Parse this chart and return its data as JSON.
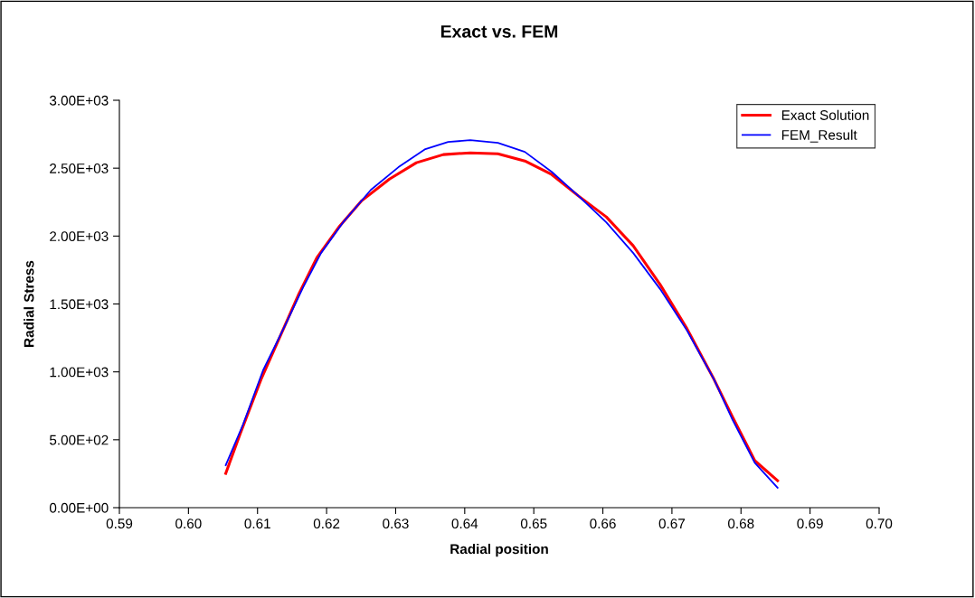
{
  "chart_data": {
    "type": "line",
    "title": "Exact vs. FEM",
    "xlabel": "Radial position",
    "ylabel": "Radial Stress",
    "xlim": [
      0.59,
      0.7
    ],
    "xticks": [
      0.59,
      {
        "value": 0.6,
        "label": "0.60"
      },
      0.61,
      0.62,
      0.63,
      0.64,
      0.65,
      0.66,
      0.67,
      0.68,
      0.69,
      {
        "value": 0.7,
        "label": "0.70"
      }
    ],
    "ylim": [
      0,
      3000
    ],
    "yticks": [
      {
        "value": 0,
        "label": "0.00E+00"
      },
      {
        "value": 500,
        "label": "5.00E+02"
      },
      {
        "value": 1000,
        "label": "1.00E+03"
      },
      {
        "value": 1500,
        "label": "1.50E+03"
      },
      {
        "value": 2000,
        "label": "2.00E+03"
      },
      {
        "value": 2500,
        "label": "2.50E+03"
      },
      {
        "value": 3000,
        "label": "3.00E+03"
      }
    ],
    "grid": false,
    "legend": "top right",
    "marker": "none",
    "line_style": "solid",
    "series": [
      {
        "name": "Exact Solution",
        "color": "#ff0000",
        "x": [
          0.6054,
          0.6075,
          0.6105,
          0.6134,
          0.616,
          0.6186,
          0.6219,
          0.6251,
          0.6291,
          0.633,
          0.6369,
          0.6408,
          0.6448,
          0.6487,
          0.6526,
          0.6565,
          0.6605,
          0.6644,
          0.6683,
          0.6722,
          0.6761,
          0.6788,
          0.682,
          0.6853
        ],
        "values": [
          253,
          545,
          944,
          1277,
          1576,
          1842,
          2074,
          2261,
          2420,
          2540,
          2600,
          2613,
          2606,
          2553,
          2453,
          2294,
          2141,
          1928,
          1642,
          1316,
          944,
          665,
          346,
          199
        ]
      },
      {
        "name": "FEM_Result",
        "color": "#0000ff",
        "x": [
          0.6054,
          0.6079,
          0.6108,
          0.614,
          0.6166,
          0.6192,
          0.6225,
          0.6264,
          0.6304,
          0.6343,
          0.6376,
          0.6408,
          0.6448,
          0.6487,
          0.6526,
          0.6565,
          0.6605,
          0.6644,
          0.6683,
          0.6722,
          0.6761,
          0.6788,
          0.682,
          0.6853
        ],
        "values": [
          313,
          612,
          1011,
          1343,
          1622,
          1875,
          2108,
          2340,
          2507,
          2640,
          2693,
          2706,
          2686,
          2620,
          2473,
          2294,
          2101,
          1875,
          1609,
          1303,
          944,
          645,
          330,
          146
        ]
      }
    ]
  }
}
